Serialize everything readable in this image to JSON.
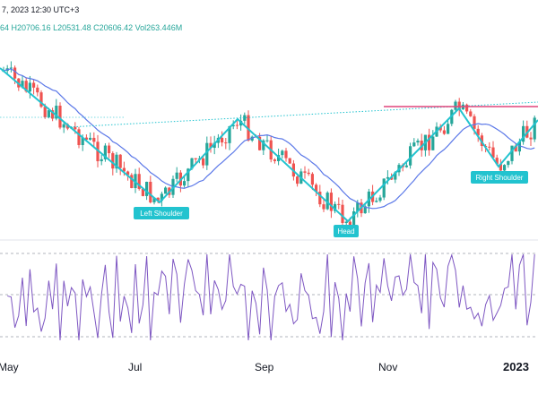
{
  "header": {
    "line1": "7, 2023 12:30 UTC+3",
    "line2_prefix": "64",
    "line2_values": "H20706.16  L20531.48  C20606.42  Vol263.446M"
  },
  "colors": {
    "up": "#26a69a",
    "down": "#ef5350",
    "ma": "#5b78e8",
    "pattern": "#22c3cf",
    "neckline": "#22c3cf",
    "resistance": "#e0457b",
    "rsi": "#7e57c2",
    "rsi_band": "#b2b5be",
    "label_bg": "#22c3cf"
  },
  "pattern_labels": {
    "left_shoulder": "Left Shoulder",
    "head": "Head",
    "right_shoulder": "Right Shoulder"
  },
  "x_axis_labels": [
    "May",
    "Jul",
    "Sep",
    "Nov",
    "2023"
  ],
  "chart_data": {
    "type": "candlestick",
    "notes_pattern": "head-and-shoulders (inverse) with neckline and resistance",
    "x_labels": [
      "May",
      "Jul",
      "Sep",
      "Nov",
      "2023"
    ]
  }
}
